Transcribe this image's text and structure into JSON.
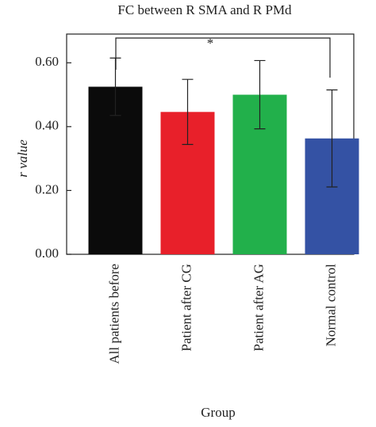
{
  "chart_data": {
    "type": "bar",
    "title": "FC between R SMA and R PMd",
    "x_label": "Group",
    "y_label": "r value",
    "categories": [
      "All patients before",
      "Patient after CG",
      "Patient after AG",
      "Normal control"
    ],
    "values": [
      0.525,
      0.446,
      0.5,
      0.363
    ],
    "errors": [
      0.09,
      0.102,
      0.107,
      0.152
    ],
    "colors": [
      "#0b0b0b",
      "#e8202a",
      "#22b04b",
      "#3452a4"
    ],
    "ylim": [
      0,
      0.69
    ],
    "yticks": [
      {
        "value": 0,
        "label": "0.00"
      },
      {
        "value": 0.2,
        "label": "0.20"
      },
      {
        "value": 0.4,
        "label": "0.40"
      },
      {
        "value": 0.6,
        "label": "0.60"
      }
    ],
    "annotation": "*"
  }
}
